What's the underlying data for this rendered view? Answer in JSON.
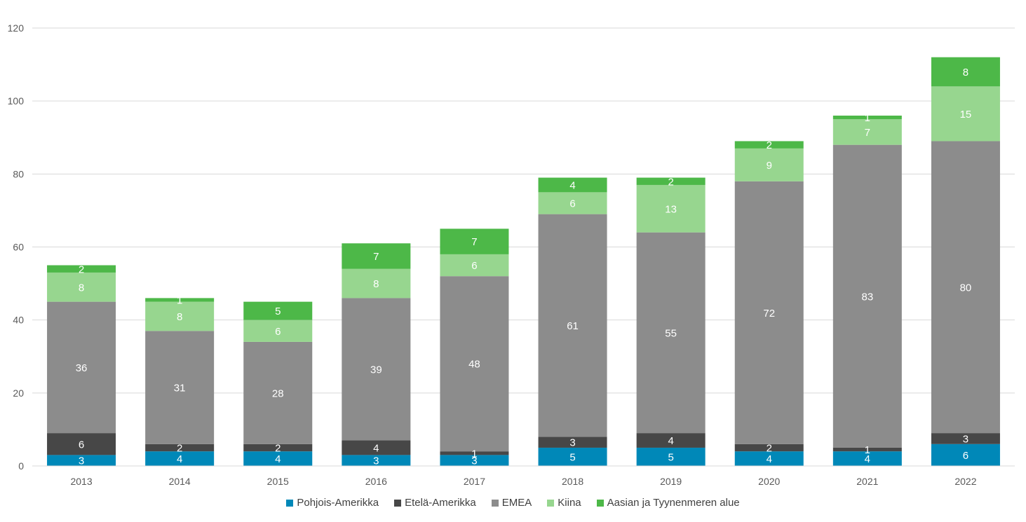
{
  "chart_data": {
    "type": "bar",
    "stacked": true,
    "title": "",
    "xlabel": "",
    "ylabel": "",
    "ylim": [
      0,
      120
    ],
    "yticks": [
      0,
      20,
      40,
      60,
      80,
      100,
      120
    ],
    "grid": true,
    "legend_position": "bottom",
    "categories": [
      "2013",
      "2014",
      "2015",
      "2016",
      "2017",
      "2018",
      "2019",
      "2020",
      "2021",
      "2022"
    ],
    "series": [
      {
        "name": "Pohjois-Amerikka",
        "color": "#0088b8",
        "values": [
          3,
          4,
          4,
          3,
          3,
          5,
          5,
          4,
          4,
          6
        ]
      },
      {
        "name": "Etelä-Amerikka",
        "color": "#474747",
        "values": [
          6,
          2,
          2,
          4,
          1,
          3,
          4,
          2,
          1,
          3
        ]
      },
      {
        "name": "EMEA",
        "color": "#8c8c8c",
        "values": [
          36,
          31,
          28,
          39,
          48,
          61,
          55,
          72,
          83,
          80
        ]
      },
      {
        "name": "Kiina",
        "color": "#97d68f",
        "values": [
          8,
          8,
          6,
          8,
          6,
          6,
          13,
          9,
          7,
          15
        ]
      },
      {
        "name": "Aasian ja Tyynenmeren alue",
        "color": "#4db848",
        "values": [
          2,
          1,
          5,
          7,
          7,
          4,
          2,
          2,
          1,
          8
        ]
      }
    ]
  }
}
